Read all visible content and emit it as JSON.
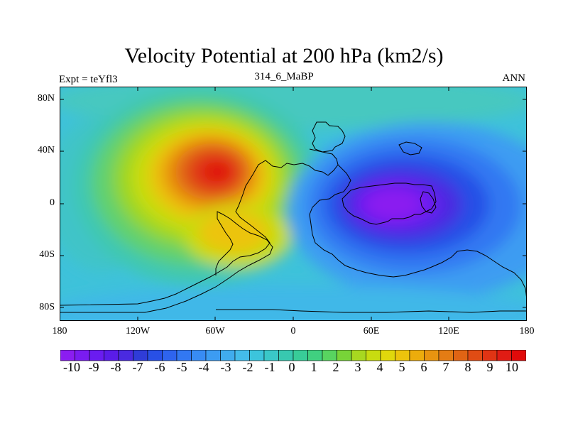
{
  "title": "Velocity Potential at 200 hPa (km2/s)",
  "subtitle_left": "Expt = teYfl3",
  "subtitle_center": "314_6_MaBP",
  "subtitle_right": "ANN",
  "map": {
    "projection": "cylindrical-equidistant",
    "lon_range": [
      -180,
      180
    ],
    "lat_range": [
      -90,
      90
    ],
    "lat_ticks": [
      "80N",
      "40N",
      "0",
      "40S",
      "80S"
    ],
    "lon_ticks": [
      "180",
      "120W",
      "60W",
      "0",
      "60E",
      "120E",
      "180"
    ]
  },
  "field": {
    "variable": "velocity potential",
    "level": "200 hPa",
    "units": "km2/s",
    "centers": [
      {
        "name": "positive-maximum",
        "lon": -55,
        "lat": 22,
        "value": 9.5
      },
      {
        "name": "negative-minimum",
        "lon": 65,
        "lat": 0,
        "value": -10.5
      }
    ]
  },
  "colorbar": {
    "labels": [
      "-10",
      "-9",
      "-8",
      "-7",
      "-6",
      "-5",
      "-4",
      "-3",
      "-2",
      "-1",
      "0",
      "1",
      "2",
      "3",
      "4",
      "5",
      "6",
      "7",
      "8",
      "9",
      "10"
    ],
    "colors": [
      "#8b1df0",
      "#7a1cf0",
      "#6a1cf0",
      "#5a1ce8",
      "#4a2ae0",
      "#2f3cd8",
      "#2850e6",
      "#2e64ee",
      "#3278f2",
      "#388cf4",
      "#3c9cf2",
      "#40acee",
      "#44bcea",
      "#3cc4dc",
      "#3ac8c8",
      "#38c8b0",
      "#38cc98",
      "#40d080",
      "#58d460",
      "#78d438",
      "#a8d820",
      "#c8dc10",
      "#e0d80c",
      "#ecc40c",
      "#ecac0c",
      "#e89410",
      "#e47c14",
      "#e06414",
      "#e04c14",
      "#e03414",
      "#e01c14",
      "#e00a0a"
    ]
  }
}
